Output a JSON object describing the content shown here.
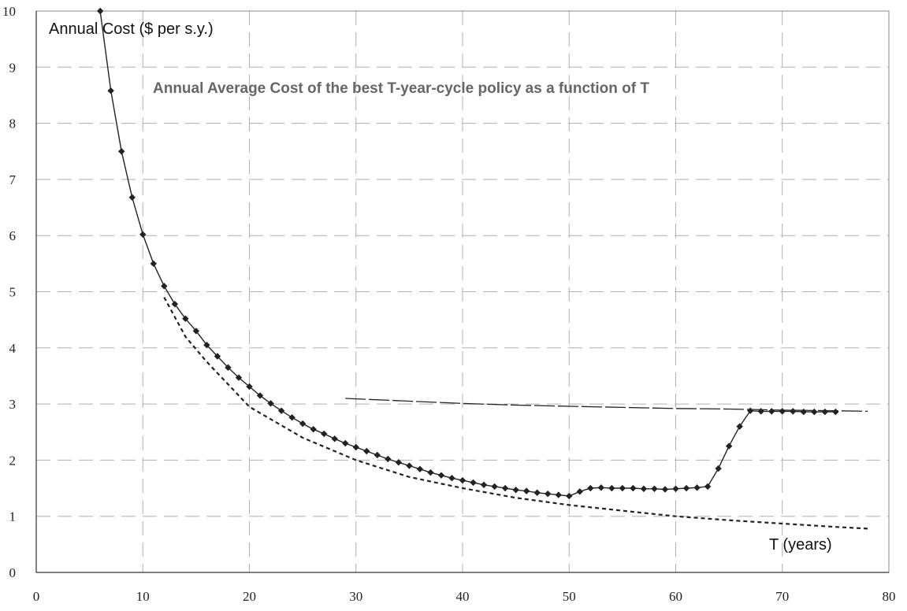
{
  "chart_data": {
    "type": "line",
    "title": "Annual Average Cost of the best T-year-cycle policy as a function of T",
    "ylabel": "Annual Cost ($ per s.y.)",
    "xlabel": "T (years)",
    "xlim": [
      0,
      80
    ],
    "ylim": [
      0,
      10
    ],
    "x_ticks": [
      "0",
      "10",
      "20",
      "30",
      "40",
      "50",
      "60",
      "70",
      "80"
    ],
    "y_ticks": [
      "0",
      "1",
      "2",
      "3",
      "4",
      "5",
      "6",
      "7",
      "8",
      "9",
      "10"
    ],
    "grid": true,
    "colors": {
      "series": "#222222",
      "grid": "#b0b0b0",
      "title": "#666666"
    },
    "series": [
      {
        "style": "solid-with-diamond-markers",
        "x": [
          6,
          7,
          8,
          9,
          10,
          11,
          12,
          13,
          14,
          15,
          16,
          17,
          18,
          19,
          20,
          21,
          22,
          23,
          24,
          25,
          26,
          27,
          28,
          29,
          30,
          31,
          32,
          33,
          34,
          35,
          36,
          37,
          38,
          39,
          40,
          41,
          42,
          43,
          44,
          45,
          46,
          47,
          48,
          49,
          50,
          51,
          52,
          53,
          54,
          55,
          56,
          57,
          58,
          59,
          60,
          61,
          62,
          63,
          64,
          65,
          66,
          67,
          68,
          69,
          70,
          71,
          72,
          73,
          74,
          75
        ],
        "y": [
          10.0,
          8.58,
          7.5,
          6.68,
          6.02,
          5.5,
          5.1,
          4.78,
          4.52,
          4.3,
          4.05,
          3.85,
          3.65,
          3.47,
          3.31,
          3.15,
          3.01,
          2.88,
          2.76,
          2.65,
          2.55,
          2.47,
          2.38,
          2.3,
          2.23,
          2.16,
          2.09,
          2.02,
          1.96,
          1.9,
          1.84,
          1.78,
          1.73,
          1.68,
          1.64,
          1.6,
          1.56,
          1.53,
          1.5,
          1.47,
          1.45,
          1.42,
          1.4,
          1.38,
          1.36,
          1.44,
          1.5,
          1.51,
          1.5,
          1.5,
          1.5,
          1.49,
          1.49,
          1.48,
          1.49,
          1.5,
          1.51,
          1.53,
          1.85,
          2.25,
          2.6,
          2.88,
          2.87,
          2.87,
          2.87,
          2.87,
          2.86,
          2.86,
          2.86,
          2.86
        ]
      },
      {
        "style": "dotted",
        "x": [
          12,
          14,
          16,
          18,
          20,
          25,
          30,
          35,
          40,
          45,
          50,
          55,
          60,
          65,
          70,
          75,
          78
        ],
        "y": [
          4.9,
          4.2,
          3.75,
          3.35,
          2.95,
          2.4,
          2.0,
          1.7,
          1.5,
          1.33,
          1.2,
          1.1,
          1.0,
          0.93,
          0.87,
          0.81,
          0.78
        ]
      },
      {
        "style": "dashed",
        "x": [
          29,
          35,
          40,
          45,
          50,
          55,
          60,
          65,
          70,
          75,
          78
        ],
        "y": [
          3.1,
          3.05,
          3.01,
          2.98,
          2.96,
          2.94,
          2.92,
          2.91,
          2.89,
          2.88,
          2.87
        ]
      }
    ]
  }
}
